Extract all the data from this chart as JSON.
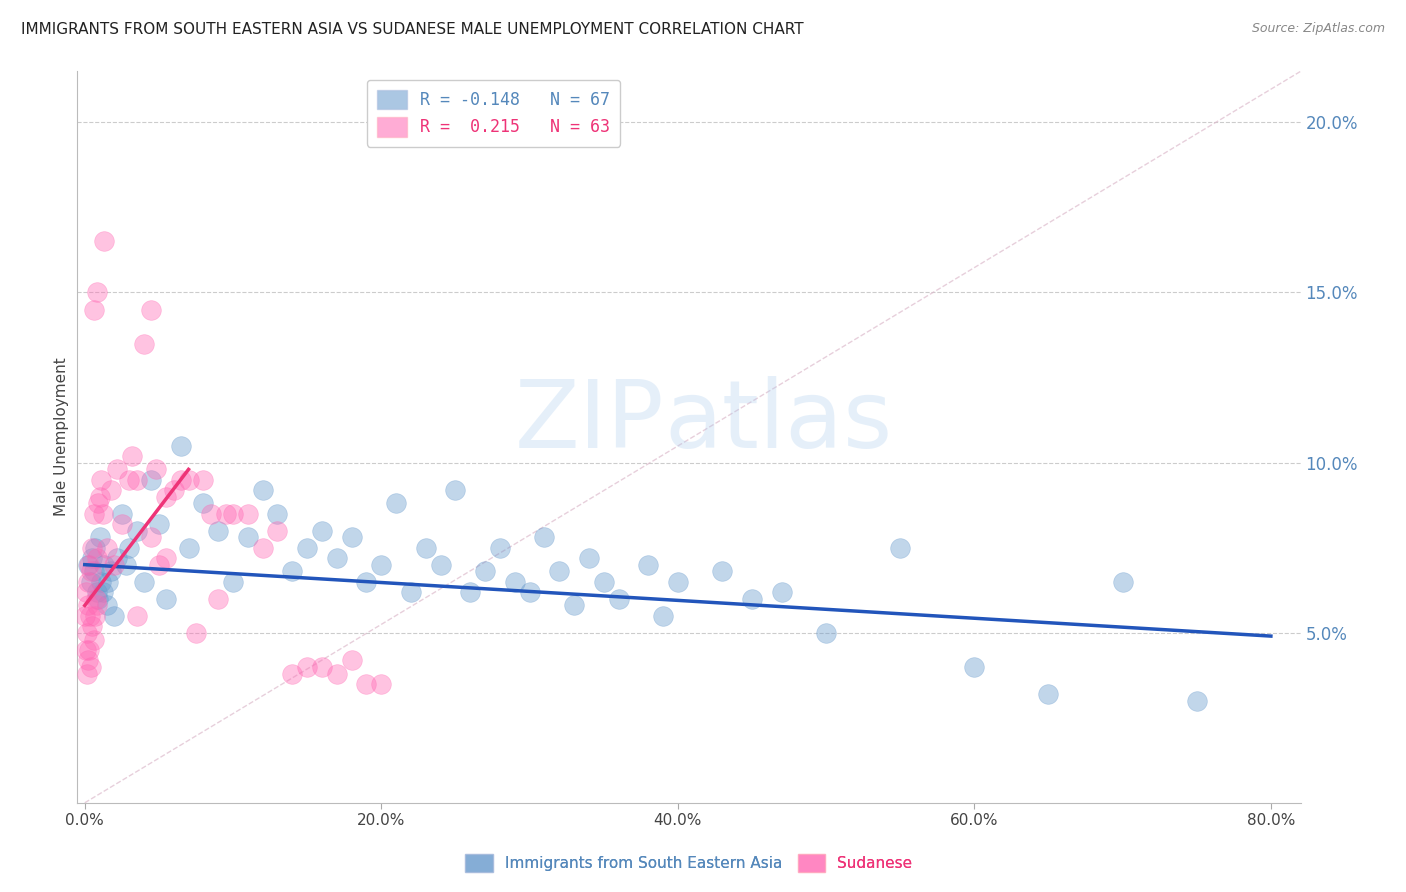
{
  "title": "IMMIGRANTS FROM SOUTH EASTERN ASIA VS SUDANESE MALE UNEMPLOYMENT CORRELATION CHART",
  "source": "Source: ZipAtlas.com",
  "ylabel": "Male Unemployment",
  "x_tick_labels": [
    "0.0%",
    "20.0%",
    "40.0%",
    "60.0%",
    "80.0%"
  ],
  "x_tick_positions": [
    0.0,
    20.0,
    40.0,
    60.0,
    80.0
  ],
  "y_tick_labels": [
    "20.0%",
    "15.0%",
    "10.0%",
    "5.0%"
  ],
  "y_tick_positions": [
    20.0,
    15.0,
    10.0,
    5.0
  ],
  "ylim": [
    0.0,
    21.5
  ],
  "xlim": [
    -0.5,
    82.0
  ],
  "legend_entries": [
    {
      "label": "R = -0.148   N = 67",
      "color": "#6699cc"
    },
    {
      "label": "R =  0.215   N = 63",
      "color": "#ff69b4"
    }
  ],
  "legend_labels_bottom": [
    "Immigrants from South Eastern Asia",
    "Sudanese"
  ],
  "blue_color": "#6699cc",
  "pink_color": "#ff69b4",
  "background_color": "#ffffff",
  "grid_color": "#cccccc",
  "blue_scatter_x": [
    0.2,
    0.4,
    0.5,
    0.6,
    0.7,
    0.8,
    0.9,
    1.0,
    1.1,
    1.2,
    1.3,
    1.5,
    1.6,
    1.8,
    2.0,
    2.2,
    2.5,
    2.8,
    3.0,
    3.5,
    4.0,
    4.5,
    5.0,
    5.5,
    6.5,
    7.0,
    8.0,
    9.0,
    10.0,
    11.0,
    12.0,
    13.0,
    14.0,
    15.0,
    16.0,
    17.0,
    18.0,
    19.0,
    20.0,
    21.0,
    22.0,
    23.0,
    24.0,
    25.0,
    26.0,
    27.0,
    28.0,
    29.0,
    30.0,
    31.0,
    32.0,
    33.0,
    34.0,
    35.0,
    36.0,
    38.0,
    39.0,
    40.0,
    43.0,
    45.0,
    47.0,
    50.0,
    55.0,
    60.0,
    65.0,
    70.0,
    75.0
  ],
  "blue_scatter_y": [
    7.0,
    6.5,
    7.2,
    6.8,
    7.5,
    6.2,
    6.0,
    7.8,
    6.5,
    6.2,
    7.0,
    5.8,
    6.5,
    6.8,
    5.5,
    7.2,
    8.5,
    7.0,
    7.5,
    8.0,
    6.5,
    9.5,
    8.2,
    6.0,
    10.5,
    7.5,
    8.8,
    8.0,
    6.5,
    7.8,
    9.2,
    8.5,
    6.8,
    7.5,
    8.0,
    7.2,
    7.8,
    6.5,
    7.0,
    8.8,
    6.2,
    7.5,
    7.0,
    9.2,
    6.2,
    6.8,
    7.5,
    6.5,
    6.2,
    7.8,
    6.8,
    5.8,
    7.2,
    6.5,
    6.0,
    7.0,
    5.5,
    6.5,
    6.8,
    6.0,
    6.2,
    5.0,
    7.5,
    4.0,
    3.2,
    6.5,
    3.0
  ],
  "pink_scatter_x": [
    0.05,
    0.1,
    0.1,
    0.15,
    0.15,
    0.2,
    0.2,
    0.25,
    0.3,
    0.3,
    0.35,
    0.4,
    0.45,
    0.5,
    0.5,
    0.6,
    0.65,
    0.7,
    0.75,
    0.8,
    0.85,
    0.9,
    1.0,
    1.1,
    1.2,
    1.5,
    1.8,
    2.0,
    2.5,
    3.0,
    3.5,
    4.0,
    4.5,
    5.0,
    5.5,
    6.0,
    7.0,
    8.0,
    9.5,
    10.0,
    12.0,
    13.0,
    15.0,
    17.0,
    18.0,
    19.0,
    3.5,
    4.5,
    5.5,
    7.5,
    9.0,
    11.0,
    14.0,
    16.0,
    20.0,
    0.6,
    0.8,
    1.3,
    2.2,
    3.2,
    4.8,
    6.5,
    8.5
  ],
  "pink_scatter_y": [
    5.5,
    4.5,
    6.2,
    5.0,
    3.8,
    4.2,
    6.5,
    5.8,
    4.5,
    7.0,
    5.5,
    4.0,
    6.8,
    5.2,
    7.5,
    4.8,
    8.5,
    5.5,
    6.0,
    5.8,
    7.2,
    8.8,
    9.0,
    9.5,
    8.5,
    7.5,
    9.2,
    7.0,
    8.2,
    9.5,
    9.5,
    13.5,
    14.5,
    7.0,
    9.0,
    9.2,
    9.5,
    9.5,
    8.5,
    8.5,
    7.5,
    8.0,
    4.0,
    3.8,
    4.2,
    3.5,
    5.5,
    7.8,
    7.2,
    5.0,
    6.0,
    8.5,
    3.8,
    4.0,
    3.5,
    14.5,
    15.0,
    16.5,
    9.8,
    10.2,
    9.8,
    9.5,
    8.5
  ],
  "blue_trend_x": [
    0.0,
    80.0
  ],
  "blue_trend_y": [
    7.0,
    4.9
  ],
  "pink_trend_x": [
    0.0,
    7.0
  ],
  "pink_trend_y": [
    5.8,
    9.8
  ],
  "diag_line_x": [
    0.0,
    82.0
  ],
  "diag_line_y": [
    0.0,
    21.5
  ]
}
